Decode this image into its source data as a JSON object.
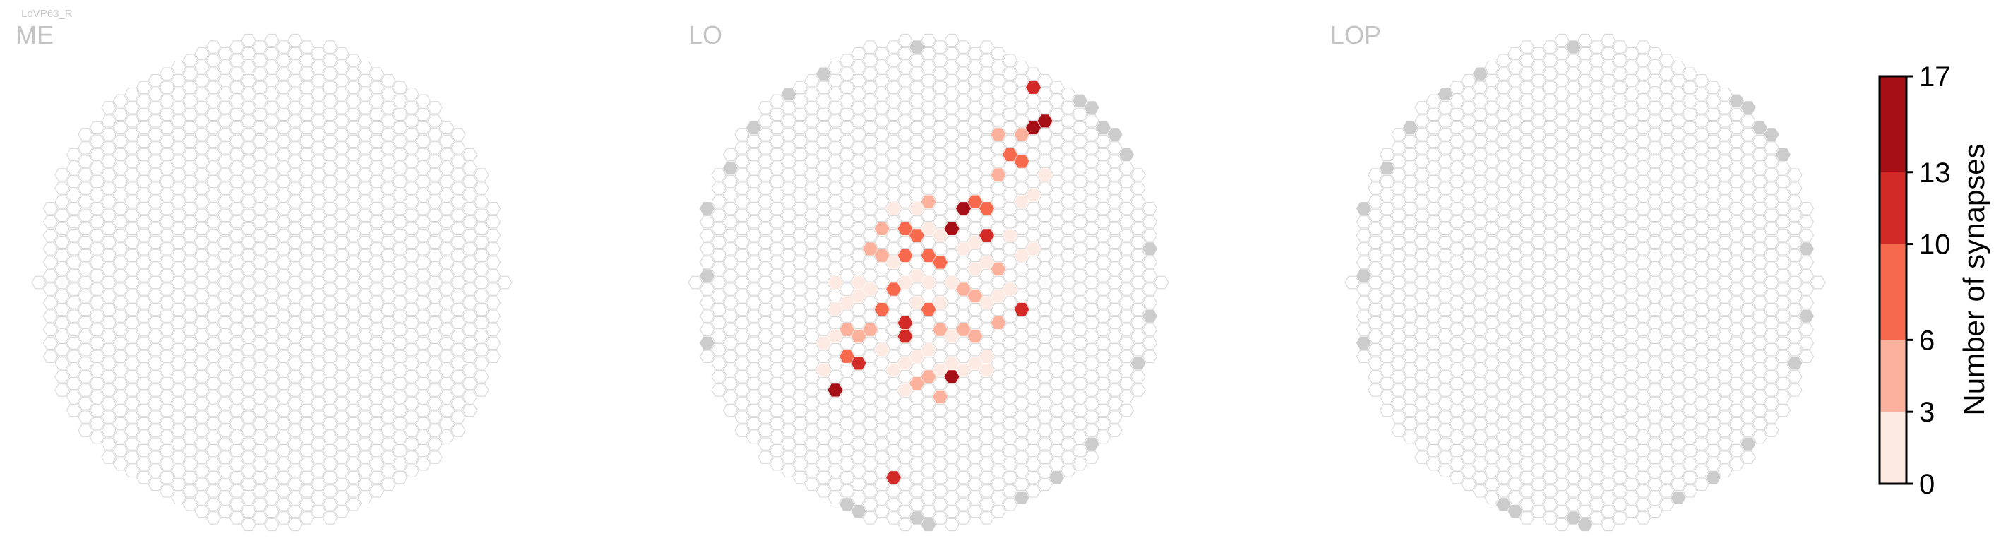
{
  "figure": {
    "cell_type": "LoVP63_R"
  },
  "colors": {
    "empty_stroke": "#d4d4d4",
    "empty_fill": "#ffffff",
    "inactive_fill": "#cccccc",
    "panel_title": "#c4c4c4",
    "scale": [
      "#fdebe3",
      "#fbb19b",
      "#f6694c",
      "#d22a26",
      "#a50f15"
    ]
  },
  "chart_data": [
    {
      "type": "heatmap",
      "title": "ME",
      "grid": "hexagonal column lattice",
      "synapse_cells": []
    },
    {
      "type": "heatmap",
      "title": "LO",
      "grid": "hexagonal column lattice",
      "synapse_cells": [
        {
          "x": 4,
          "y": 14,
          "value": 14
        },
        {
          "x": 6,
          "y": 12,
          "value": 11
        },
        {
          "x": 14,
          "y": 13,
          "value": 14
        },
        {
          "x": 10,
          "y": 9,
          "value": 12
        },
        {
          "x": 14,
          "y": 2,
          "value": 17
        },
        {
          "x": 15,
          "y": 0,
          "value": 15
        },
        {
          "x": 21,
          "y": -6,
          "value": 16
        },
        {
          "x": 21,
          "y": -9,
          "value": 12
        },
        {
          "x": 9,
          "y": 20,
          "value": 11
        },
        {
          "x": 20,
          "y": 8,
          "value": 12
        },
        {
          "x": 17,
          "y": 2,
          "value": 13
        },
        {
          "x": 22,
          "y": -6,
          "value": 16
        },
        {
          "x": 10,
          "y": 10,
          "value": 13
        },
        {
          "x": 20,
          "y": -3,
          "value": 9
        },
        {
          "x": 9,
          "y": 6,
          "value": 9
        },
        {
          "x": 8,
          "y": 8,
          "value": 7
        },
        {
          "x": 10,
          "y": 2,
          "value": 8
        },
        {
          "x": 11,
          "y": 2,
          "value": 9
        },
        {
          "x": 12,
          "y": 4,
          "value": 9
        },
        {
          "x": 13,
          "y": 4,
          "value": 7
        },
        {
          "x": 12,
          "y": 8,
          "value": 8
        },
        {
          "x": 10,
          "y": 4,
          "value": 7
        },
        {
          "x": 8,
          "y": 4,
          "value": 5
        },
        {
          "x": 7,
          "y": 3,
          "value": 5
        },
        {
          "x": 6,
          "y": 10,
          "value": 5
        },
        {
          "x": 5,
          "y": 11,
          "value": 8
        },
        {
          "x": 7,
          "y": 9,
          "value": 6
        },
        {
          "x": 11,
          "y": 13,
          "value": 4
        },
        {
          "x": 12,
          "y": 13,
          "value": 5
        },
        {
          "x": 13,
          "y": 14,
          "value": 4
        },
        {
          "x": 16,
          "y": 7,
          "value": 5
        },
        {
          "x": 15,
          "y": 6,
          "value": 6
        },
        {
          "x": 18,
          "y": 5,
          "value": 4
        },
        {
          "x": 17,
          "y": 0,
          "value": 7
        },
        {
          "x": 16,
          "y": 0,
          "value": 8
        },
        {
          "x": 18,
          "y": -2,
          "value": 5
        },
        {
          "x": 19,
          "y": -4,
          "value": 9
        },
        {
          "x": 18,
          "y": -5,
          "value": 4
        },
        {
          "x": 20,
          "y": -5,
          "value": 5
        },
        {
          "x": 12,
          "y": 0,
          "value": 4
        },
        {
          "x": 9,
          "y": 0,
          "value": 3
        },
        {
          "x": 8,
          "y": 2,
          "value": 4
        },
        {
          "x": 13,
          "y": 9,
          "value": 5
        },
        {
          "x": 15,
          "y": 9,
          "value": 5
        },
        {
          "x": 16,
          "y": 10,
          "value": 4
        },
        {
          "x": 11,
          "y": 11,
          "value": 3
        },
        {
          "x": 14,
          "y": 10,
          "value": 3
        },
        {
          "x": 17,
          "y": 4,
          "value": 3
        },
        {
          "x": 16,
          "y": 3,
          "value": 2
        },
        {
          "x": 15,
          "y": 3,
          "value": 2
        },
        {
          "x": 16,
          "y": 5,
          "value": 3
        },
        {
          "x": 19,
          "y": 2,
          "value": 2
        },
        {
          "x": 20,
          "y": 0,
          "value": 2
        },
        {
          "x": 22,
          "y": -2,
          "value": 3
        },
        {
          "x": 21,
          "y": -1,
          "value": 2
        },
        {
          "x": 14,
          "y": 6,
          "value": 2
        },
        {
          "x": 13,
          "y": 7,
          "value": 2
        },
        {
          "x": 12,
          "y": 6,
          "value": 2
        },
        {
          "x": 11,
          "y": 5,
          "value": 2
        },
        {
          "x": 11,
          "y": 7,
          "value": 3
        },
        {
          "x": 10,
          "y": 6,
          "value": 2
        },
        {
          "x": 9,
          "y": 4,
          "value": 3
        },
        {
          "x": 7,
          "y": 6,
          "value": 2
        },
        {
          "x": 6,
          "y": 7,
          "value": 3
        },
        {
          "x": 6,
          "y": 6,
          "value": 2
        },
        {
          "x": 5,
          "y": 9,
          "value": 4
        },
        {
          "x": 5,
          "y": 7,
          "value": 3
        },
        {
          "x": 4,
          "y": 8,
          "value": 2
        },
        {
          "x": 4,
          "y": 10,
          "value": 2
        },
        {
          "x": 3,
          "y": 10,
          "value": 2
        },
        {
          "x": 3,
          "y": 12,
          "value": 3
        },
        {
          "x": 4,
          "y": 6,
          "value": 2
        },
        {
          "x": 8,
          "y": 11,
          "value": 2
        },
        {
          "x": 9,
          "y": 12,
          "value": 3
        },
        {
          "x": 10,
          "y": 14,
          "value": 2
        },
        {
          "x": 12,
          "y": 11,
          "value": 3
        },
        {
          "x": 13,
          "y": 12,
          "value": 2
        },
        {
          "x": 15,
          "y": 12,
          "value": 3
        },
        {
          "x": 16,
          "y": 12,
          "value": 2
        },
        {
          "x": 17,
          "y": 7,
          "value": 2
        },
        {
          "x": 18,
          "y": 7,
          "value": 3
        },
        {
          "x": 18,
          "y": 9,
          "value": 4
        },
        {
          "x": 17,
          "y": 11,
          "value": 2
        },
        {
          "x": 17,
          "y": 12,
          "value": 1
        },
        {
          "x": 19,
          "y": 6,
          "value": 2
        },
        {
          "x": 14,
          "y": 12,
          "value": 2
        },
        {
          "x": 20,
          "y": 4,
          "value": 2
        },
        {
          "x": 21,
          "y": 3,
          "value": 3
        },
        {
          "x": 10,
          "y": 12,
          "value": 2
        },
        {
          "x": 13,
          "y": 2,
          "value": 3
        },
        {
          "x": 12,
          "y": 2,
          "value": 2
        },
        {
          "x": 11,
          "y": 0,
          "value": 2
        }
      ]
    },
    {
      "type": "heatmap",
      "title": "LOP",
      "grid": "hexagonal column lattice",
      "synapse_cells": []
    }
  ],
  "colorbar": {
    "label": "Number of synapses",
    "ticks": [
      "0",
      "3",
      "6",
      "10",
      "13",
      "17"
    ]
  }
}
